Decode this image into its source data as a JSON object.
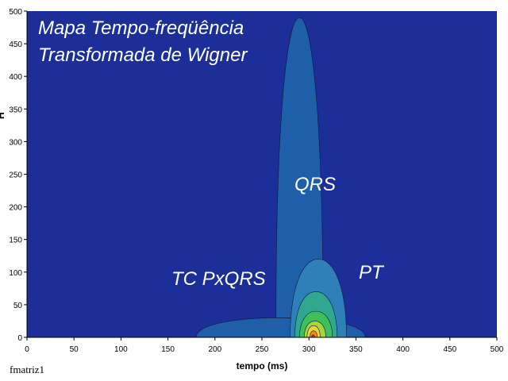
{
  "chart_data": {
    "type": "heatmap",
    "title_lines": [
      "Mapa Tempo-freqüência",
      "Transformada de Wigner"
    ],
    "xlabel": "tempo (ms)",
    "ylabel": "H",
    "xlim": [
      0,
      500
    ],
    "ylim": [
      0,
      500
    ],
    "x_ticks": [
      0,
      50,
      100,
      150,
      200,
      250,
      300,
      350,
      400,
      450,
      500
    ],
    "y_ticks": [
      0,
      50,
      100,
      150,
      200,
      250,
      300,
      350,
      400,
      450,
      500
    ],
    "annotations": [
      {
        "text": "QRS",
        "x": 300,
        "y": 230
      },
      {
        "text": "TC PxQRS",
        "x": 170,
        "y": 85
      },
      {
        "text": "PT",
        "x": 370,
        "y": 95
      }
    ],
    "contour_colors": {
      "background": "#1c2f99",
      "level1": "#1f5ea8",
      "level2": "#2f7fb8",
      "level3": "#2fa88f",
      "level4": "#3fbf5a",
      "level5": "#a8d63f",
      "level6": "#f2d23f",
      "level7": "#f58a1f",
      "level8": "#e0301f"
    },
    "regions": [
      {
        "level": 1,
        "x": [
          180,
          360
        ],
        "y": [
          0,
          30
        ]
      },
      {
        "level": 1,
        "x": [
          265,
          315
        ],
        "y": [
          30,
          490
        ]
      },
      {
        "level": 2,
        "x": [
          280,
          340
        ],
        "y": [
          0,
          120
        ]
      },
      {
        "level": 3,
        "x": [
          285,
          330
        ],
        "y": [
          0,
          70
        ]
      },
      {
        "level": 4,
        "x": [
          290,
          325
        ],
        "y": [
          0,
          40
        ]
      },
      {
        "level": 5,
        "x": [
          295,
          318
        ],
        "y": [
          0,
          25
        ]
      },
      {
        "level": 6,
        "x": [
          298,
          312
        ],
        "y": [
          0,
          18
        ]
      },
      {
        "level": 7,
        "x": [
          301,
          309
        ],
        "y": [
          0,
          10
        ]
      },
      {
        "level": 8,
        "x": [
          303,
          306
        ],
        "y": [
          0,
          4
        ]
      }
    ]
  },
  "footer": "fmatriz1"
}
